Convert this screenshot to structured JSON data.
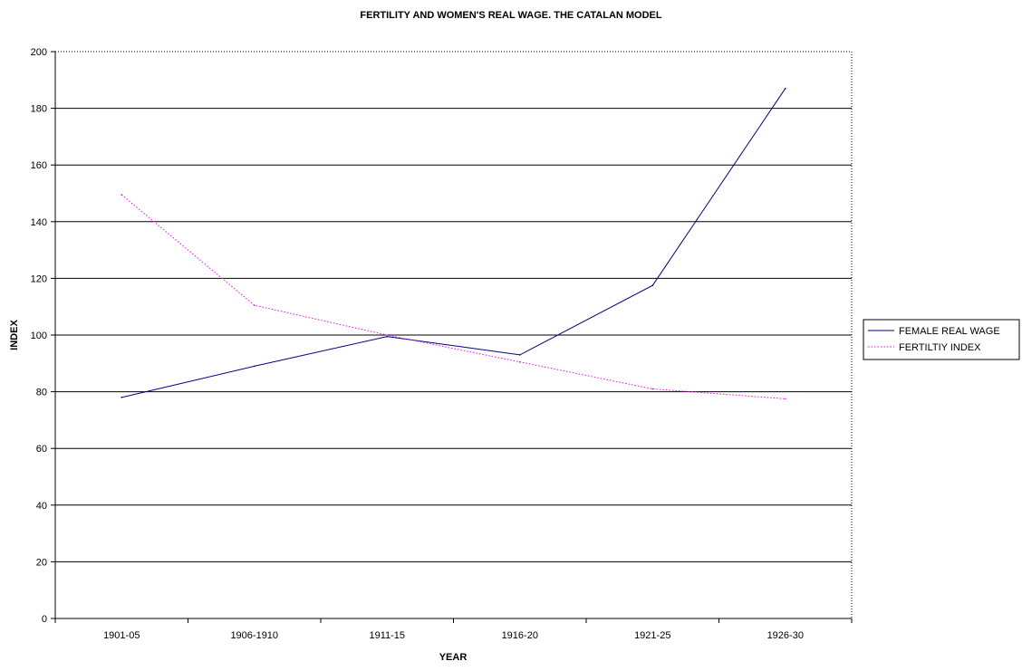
{
  "chart_data": {
    "type": "line",
    "title": "FERTILITY AND WOMEN'S REAL WAGE. THE CATALAN MODEL",
    "xlabel": "YEAR",
    "ylabel": "INDEX",
    "categories": [
      "1901-05",
      "1906-1910",
      "1911-15",
      "1916-20",
      "1921-25",
      "1926-30"
    ],
    "ylim": [
      0,
      200
    ],
    "yticks": [
      "0",
      "20",
      "40",
      "60",
      "80",
      "100",
      "120",
      "140",
      "160",
      "180",
      "200"
    ],
    "grid": true,
    "legend_position": "right",
    "series": [
      {
        "name": "FEMALE REAL WAGE",
        "values": [
          78,
          89,
          99.5,
          93,
          117.5,
          187
        ],
        "color": "#000080",
        "style": "solid"
      },
      {
        "name": "FERTILTIY INDEX",
        "values": [
          149.5,
          110.5,
          100,
          90.5,
          81,
          77.5
        ],
        "color": "#ff00ff",
        "style": "dotted"
      }
    ]
  }
}
